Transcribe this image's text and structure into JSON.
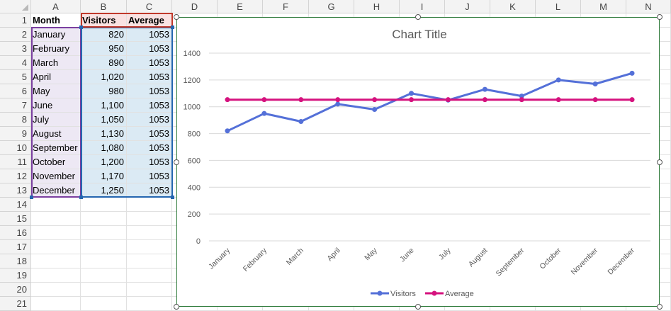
{
  "grid": {
    "columns": [
      "A",
      "B",
      "C",
      "D",
      "E",
      "F",
      "G",
      "H",
      "I",
      "J",
      "K",
      "L",
      "M",
      "N"
    ],
    "rows": [
      "1",
      "2",
      "3",
      "4",
      "5",
      "6",
      "7",
      "8",
      "9",
      "10",
      "11",
      "12",
      "13",
      "14",
      "15",
      "16",
      "17",
      "18",
      "19",
      "20",
      "21"
    ]
  },
  "table": {
    "headers": [
      "Month",
      "Visitors",
      "Average"
    ],
    "rows": [
      [
        "January",
        "820",
        "1053"
      ],
      [
        "February",
        "950",
        "1053"
      ],
      [
        "March",
        "890",
        "1053"
      ],
      [
        "April",
        "1,020",
        "1053"
      ],
      [
        "May",
        "980",
        "1053"
      ],
      [
        "June",
        "1,100",
        "1053"
      ],
      [
        "July",
        "1,050",
        "1053"
      ],
      [
        "August",
        "1,130",
        "1053"
      ],
      [
        "September",
        "1,080",
        "1053"
      ],
      [
        "October",
        "1,200",
        "1053"
      ],
      [
        "November",
        "1,170",
        "1053"
      ],
      [
        "December",
        "1,250",
        "1053"
      ]
    ]
  },
  "colors": {
    "visitors": "#5470d8",
    "average": "#d5127e",
    "chart_border": "#2e7a3a",
    "range_month": "#7b3fa0",
    "range_values": "#2566b0",
    "range_header": "#c0392b"
  },
  "chart_data": {
    "type": "line",
    "title": "Chart Title",
    "categories": [
      "January",
      "February",
      "March",
      "April",
      "May",
      "June",
      "July",
      "August",
      "September",
      "October",
      "November",
      "December"
    ],
    "series": [
      {
        "name": "Visitors",
        "values": [
          820,
          950,
          890,
          1020,
          980,
          1100,
          1050,
          1130,
          1080,
          1200,
          1170,
          1250
        ]
      },
      {
        "name": "Average",
        "values": [
          1053,
          1053,
          1053,
          1053,
          1053,
          1053,
          1053,
          1053,
          1053,
          1053,
          1053,
          1053
        ]
      }
    ],
    "yticks": [
      "0",
      "200",
      "400",
      "600",
      "800",
      "1000",
      "1200",
      "1400"
    ],
    "ylim": [
      0,
      1400
    ],
    "grid": true,
    "legend_position": "bottom",
    "xlabel": "",
    "ylabel": ""
  }
}
